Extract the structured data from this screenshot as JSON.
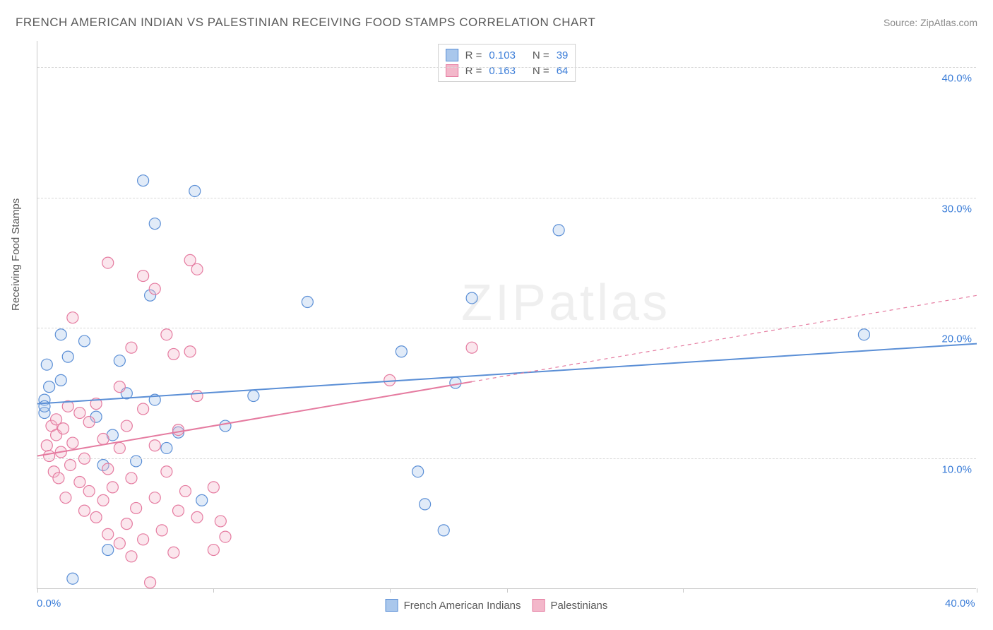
{
  "title": "FRENCH AMERICAN INDIAN VS PALESTINIAN RECEIVING FOOD STAMPS CORRELATION CHART",
  "source": "Source: ZipAtlas.com",
  "y_axis_label": "Receiving Food Stamps",
  "watermark": "ZIPatlas",
  "chart": {
    "type": "scatter",
    "xlim": [
      0,
      40
    ],
    "ylim": [
      0,
      42
    ],
    "x_ticks": [
      0,
      7.5,
      15,
      20,
      27.5,
      40
    ],
    "x_tick_labels": {
      "0": "0.0%",
      "40": "40.0%"
    },
    "y_gridlines": [
      10,
      20,
      30,
      40
    ],
    "y_tick_labels": {
      "10": "10.0%",
      "20": "20.0%",
      "30": "30.0%",
      "40": "40.0%"
    },
    "grid_color": "#d8d8d8",
    "axis_color": "#c8c8c8",
    "background_color": "#ffffff",
    "marker_radius": 8,
    "marker_stroke_width": 1.2,
    "marker_fill_opacity": 0.35,
    "series": [
      {
        "name": "French American Indians",
        "color_stroke": "#5b8fd6",
        "color_fill": "#a9c7ec",
        "R": "0.103",
        "N": "39",
        "regression": {
          "x1": 0,
          "y1": 14.2,
          "x2": 40,
          "y2": 18.8,
          "solid_until_x": 40
        },
        "points": [
          [
            0.3,
            14.5
          ],
          [
            0.3,
            13.5
          ],
          [
            0.3,
            14.0
          ],
          [
            0.4,
            17.2
          ],
          [
            0.5,
            15.5
          ],
          [
            1.0,
            16.0
          ],
          [
            1.0,
            19.5
          ],
          [
            1.3,
            17.8
          ],
          [
            1.5,
            0.8
          ],
          [
            2.0,
            19.0
          ],
          [
            2.5,
            13.2
          ],
          [
            2.8,
            9.5
          ],
          [
            3.0,
            3.0
          ],
          [
            3.2,
            11.8
          ],
          [
            3.5,
            17.5
          ],
          [
            3.8,
            15.0
          ],
          [
            4.2,
            9.8
          ],
          [
            4.5,
            31.3
          ],
          [
            4.8,
            22.5
          ],
          [
            5.0,
            28.0
          ],
          [
            5.0,
            14.5
          ],
          [
            5.5,
            10.8
          ],
          [
            6.0,
            12.0
          ],
          [
            6.7,
            30.5
          ],
          [
            7.0,
            6.8
          ],
          [
            8.0,
            12.5
          ],
          [
            9.2,
            14.8
          ],
          [
            11.5,
            22.0
          ],
          [
            15.5,
            18.2
          ],
          [
            16.2,
            9.0
          ],
          [
            16.5,
            6.5
          ],
          [
            17.3,
            4.5
          ],
          [
            17.8,
            15.8
          ],
          [
            18.5,
            22.3
          ],
          [
            22.2,
            27.5
          ],
          [
            35.2,
            19.5
          ]
        ]
      },
      {
        "name": "Palestinians",
        "color_stroke": "#e57ba0",
        "color_fill": "#f3b7ca",
        "R": "0.163",
        "N": "64",
        "regression": {
          "x1": 0,
          "y1": 10.2,
          "x2": 40,
          "y2": 22.5,
          "solid_until_x": 18.5
        },
        "points": [
          [
            0.4,
            11.0
          ],
          [
            0.5,
            10.2
          ],
          [
            0.6,
            12.5
          ],
          [
            0.7,
            9.0
          ],
          [
            0.8,
            13.0
          ],
          [
            0.8,
            11.8
          ],
          [
            0.9,
            8.5
          ],
          [
            1.0,
            10.5
          ],
          [
            1.1,
            12.3
          ],
          [
            1.2,
            7.0
          ],
          [
            1.3,
            14.0
          ],
          [
            1.4,
            9.5
          ],
          [
            1.5,
            11.2
          ],
          [
            1.5,
            20.8
          ],
          [
            1.8,
            8.2
          ],
          [
            1.8,
            13.5
          ],
          [
            2.0,
            6.0
          ],
          [
            2.0,
            10.0
          ],
          [
            2.2,
            7.5
          ],
          [
            2.2,
            12.8
          ],
          [
            2.5,
            5.5
          ],
          [
            2.5,
            14.2
          ],
          [
            2.8,
            6.8
          ],
          [
            2.8,
            11.5
          ],
          [
            3.0,
            4.2
          ],
          [
            3.0,
            9.2
          ],
          [
            3.0,
            25.0
          ],
          [
            3.2,
            7.8
          ],
          [
            3.5,
            3.5
          ],
          [
            3.5,
            10.8
          ],
          [
            3.5,
            15.5
          ],
          [
            3.8,
            5.0
          ],
          [
            3.8,
            12.5
          ],
          [
            4.0,
            2.5
          ],
          [
            4.0,
            8.5
          ],
          [
            4.0,
            18.5
          ],
          [
            4.2,
            6.2
          ],
          [
            4.5,
            3.8
          ],
          [
            4.5,
            13.8
          ],
          [
            4.5,
            24.0
          ],
          [
            4.8,
            0.5
          ],
          [
            5.0,
            7.0
          ],
          [
            5.0,
            11.0
          ],
          [
            5.0,
            23.0
          ],
          [
            5.3,
            4.5
          ],
          [
            5.5,
            9.0
          ],
          [
            5.5,
            19.5
          ],
          [
            5.8,
            2.8
          ],
          [
            5.8,
            18.0
          ],
          [
            6.0,
            6.0
          ],
          [
            6.0,
            12.2
          ],
          [
            6.3,
            7.5
          ],
          [
            6.5,
            18.2
          ],
          [
            6.5,
            25.2
          ],
          [
            6.8,
            5.5
          ],
          [
            6.8,
            14.8
          ],
          [
            6.8,
            24.5
          ],
          [
            7.5,
            3.0
          ],
          [
            7.5,
            7.8
          ],
          [
            7.8,
            5.2
          ],
          [
            8.0,
            4.0
          ],
          [
            15.0,
            16.0
          ],
          [
            18.5,
            18.5
          ]
        ]
      }
    ]
  },
  "legend_bottom": [
    {
      "label": "French American Indians",
      "stroke": "#5b8fd6",
      "fill": "#a9c7ec"
    },
    {
      "label": "Palestinians",
      "stroke": "#e57ba0",
      "fill": "#f3b7ca"
    }
  ]
}
